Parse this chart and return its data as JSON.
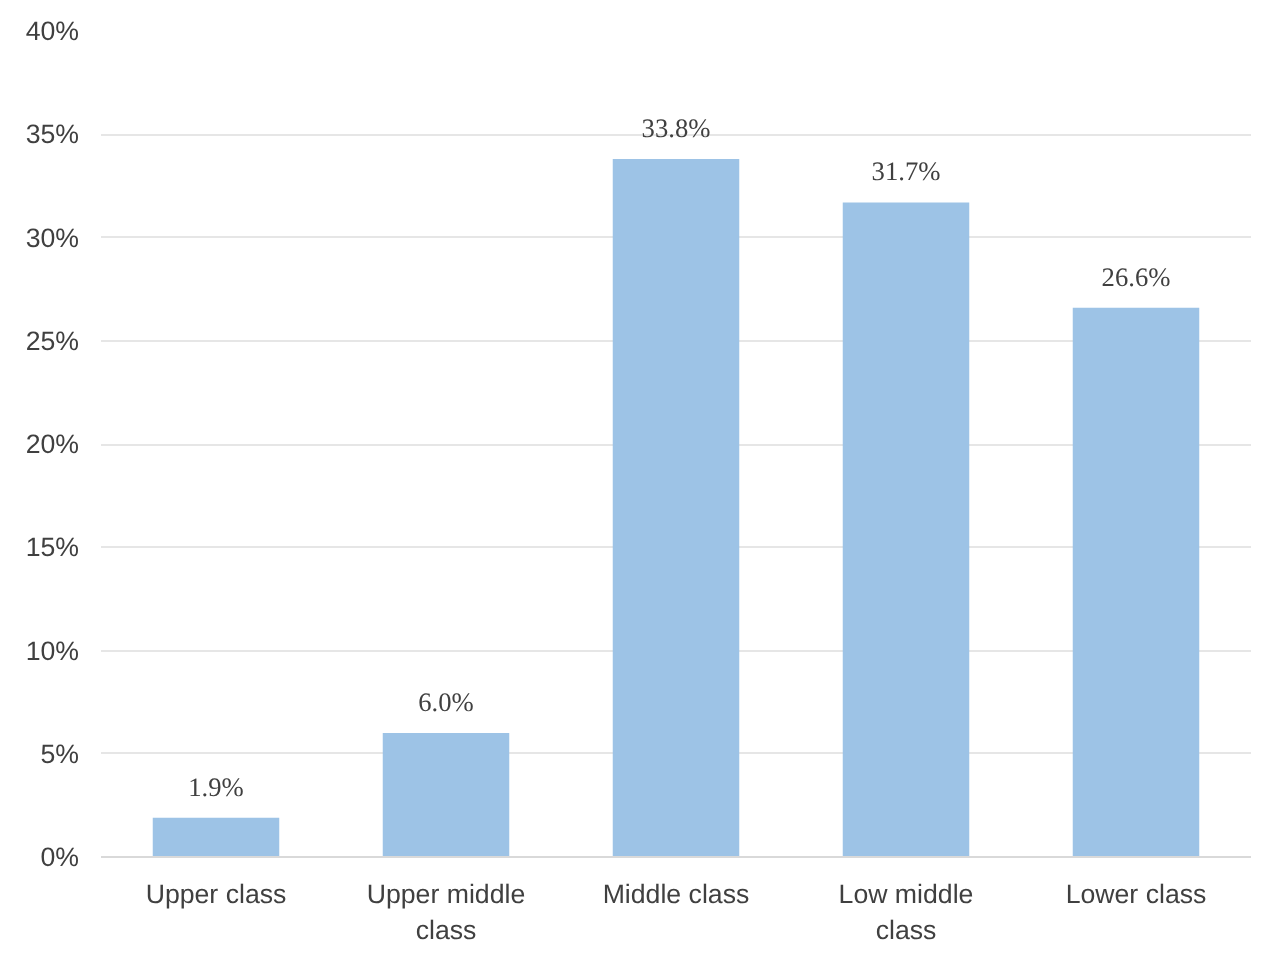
{
  "chart_data": {
    "type": "bar",
    "categories": [
      "Upper class",
      "Upper middle class",
      "Middle class",
      "Low middle class",
      "Lower class"
    ],
    "values": [
      1.9,
      6.0,
      33.8,
      31.7,
      26.6
    ],
    "value_labels": [
      "1.9%",
      "6.0%",
      "33.8%",
      "31.7%",
      "26.6%"
    ],
    "color": "#9dc3e6",
    "ylim": [
      0,
      40
    ],
    "yticks": [
      {
        "value": 0,
        "label": "0%"
      },
      {
        "value": 5,
        "label": "5%"
      },
      {
        "value": 10,
        "label": "10%"
      },
      {
        "value": 15,
        "label": "15%"
      },
      {
        "value": 20,
        "label": "20%"
      },
      {
        "value": 25,
        "label": "25%"
      },
      {
        "value": 30,
        "label": "30%"
      },
      {
        "value": 35,
        "label": "35%"
      },
      {
        "value": 40,
        "label": "40%"
      }
    ],
    "grid": "y"
  }
}
